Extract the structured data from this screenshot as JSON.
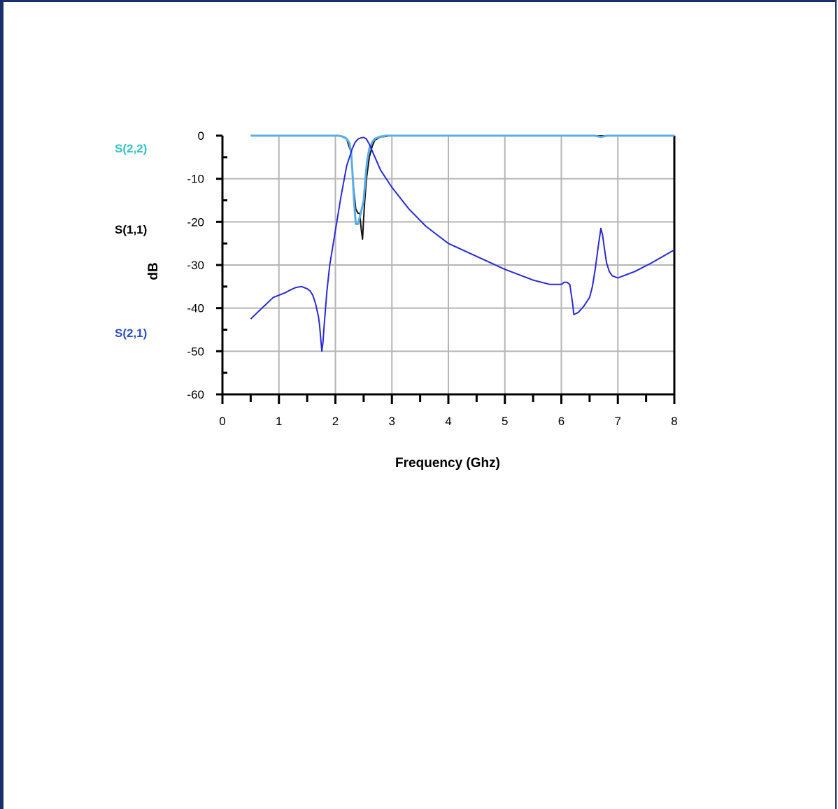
{
  "chart_data": {
    "type": "line",
    "title": "",
    "xlabel": "Frequency (Ghz)",
    "ylabel": "dB",
    "xlim": [
      0,
      8
    ],
    "ylim": [
      -60,
      0
    ],
    "xticks": [
      "0",
      "1",
      "2",
      "3",
      "4",
      "5",
      "6",
      "7",
      "8"
    ],
    "yticks": [
      "0",
      "-10",
      "-20",
      "-30",
      "-40",
      "-50",
      "-60"
    ],
    "grid": true,
    "legend_placement": "left",
    "series": [
      {
        "name": "S(2,2)",
        "color": "#5aaee6",
        "label_color": "#2ec4c4",
        "x": [
          0.5,
          1.0,
          1.5,
          2.0,
          2.05,
          2.1,
          2.15,
          2.2,
          2.25,
          2.28,
          2.3,
          2.33,
          2.36,
          2.4,
          2.45,
          2.5,
          2.53,
          2.56,
          2.6,
          2.65,
          2.7,
          2.8,
          2.9,
          3.0,
          4.0,
          5.0,
          6.0,
          6.6,
          6.7,
          6.8,
          7.0,
          8.0
        ],
        "y": [
          0,
          0,
          0,
          0,
          0,
          -0.1,
          -0.3,
          -0.7,
          -1.8,
          -4,
          -8,
          -15,
          -20.5,
          -20.5,
          -18,
          -15,
          -10,
          -6,
          -3,
          -1.5,
          -0.7,
          -0.2,
          0,
          0,
          0,
          0,
          0,
          0,
          -0.3,
          0,
          0,
          0
        ]
      },
      {
        "name": "S(1,1)",
        "color": "#111111",
        "label_color": "#000000",
        "x": [
          0.5,
          1.0,
          1.5,
          2.0,
          2.1,
          2.2,
          2.28,
          2.3,
          2.33,
          2.36,
          2.4,
          2.43,
          2.46,
          2.48,
          2.5,
          2.52,
          2.55,
          2.6,
          2.65,
          2.7,
          2.8,
          3.0,
          4.0,
          5.0,
          6.0,
          8.0
        ],
        "y": [
          0,
          0,
          0,
          0,
          -0.1,
          -0.8,
          -4,
          -8,
          -13,
          -17,
          -18,
          -18,
          -22,
          -24,
          -19,
          -15,
          -10,
          -5,
          -2.5,
          -1,
          -0.3,
          0,
          0,
          0,
          0,
          0
        ]
      },
      {
        "name": "S(2,1)",
        "color": "#2a2ad8",
        "label_color": "#2a4fc8",
        "x": [
          0.5,
          0.7,
          0.9,
          1.0,
          1.1,
          1.2,
          1.3,
          1.4,
          1.5,
          1.55,
          1.6,
          1.65,
          1.7,
          1.72,
          1.74,
          1.76,
          1.78,
          1.8,
          1.85,
          1.9,
          2.0,
          2.1,
          2.2,
          2.3,
          2.35,
          2.4,
          2.45,
          2.5,
          2.55,
          2.6,
          2.7,
          2.8,
          3.0,
          3.3,
          3.6,
          4.0,
          4.5,
          5.0,
          5.5,
          5.8,
          6.0,
          6.05,
          6.1,
          6.15,
          6.2,
          6.22,
          6.3,
          6.4,
          6.5,
          6.55,
          6.6,
          6.65,
          6.7,
          6.73,
          6.76,
          6.8,
          6.85,
          6.9,
          7.0,
          7.1,
          7.3,
          7.6,
          8.0
        ],
        "y": [
          -42.5,
          -40,
          -37.5,
          -37,
          -36.5,
          -35.8,
          -35.2,
          -35,
          -35.5,
          -36,
          -37,
          -39,
          -42,
          -44,
          -47,
          -50,
          -48,
          -44,
          -36,
          -30,
          -22,
          -14,
          -7,
          -3,
          -1.5,
          -0.8,
          -0.5,
          -0.4,
          -0.8,
          -2,
          -5,
          -8,
          -12,
          -17,
          -21,
          -25,
          -28,
          -31,
          -33.5,
          -34.5,
          -34.5,
          -34,
          -34,
          -34.5,
          -39,
          -41.5,
          -41,
          -39.5,
          -37.5,
          -35,
          -31,
          -26,
          -21.5,
          -23,
          -26,
          -29.5,
          -31.5,
          -32.5,
          -33,
          -32.5,
          -31.5,
          -29.5,
          -26.5
        ]
      }
    ]
  }
}
